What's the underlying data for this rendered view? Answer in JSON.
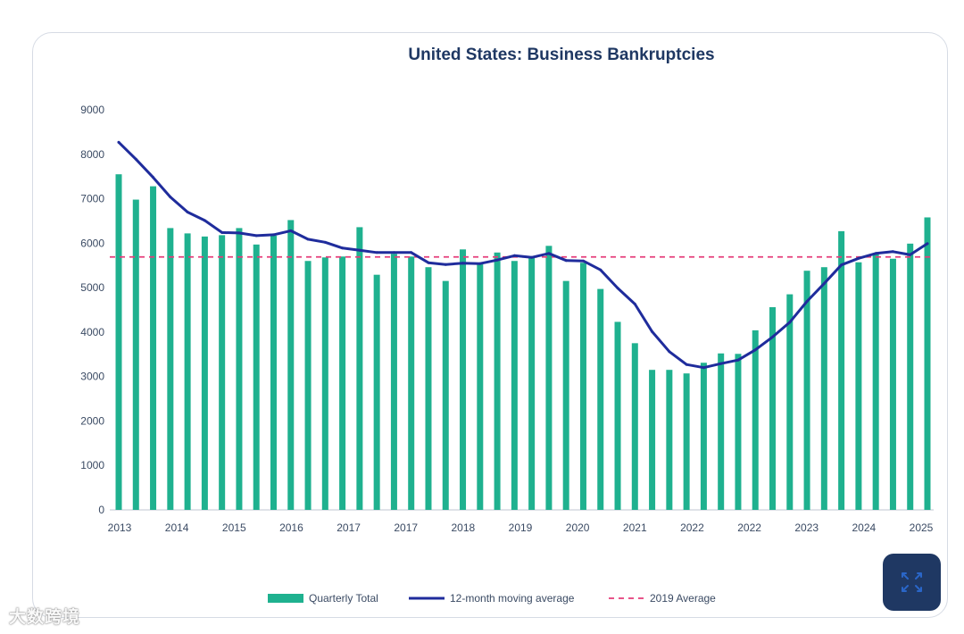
{
  "chart_data": {
    "type": "bar",
    "title": "United States: Business Bankruptcies",
    "ylim": [
      0,
      9000
    ],
    "yticks": [
      0,
      1000,
      2000,
      3000,
      4000,
      5000,
      6000,
      7000,
      8000,
      9000
    ],
    "xtick_labels": [
      "2013",
      "2014",
      "2015",
      "2016",
      "2017",
      "2017",
      "2018",
      "2019",
      "2020",
      "2021",
      "2022",
      "2022",
      "2023",
      "2024",
      "2025"
    ],
    "series": [
      {
        "name": "Quarterly Total",
        "type": "bar",
        "color": "#1fb18f",
        "values": [
          7550,
          6980,
          7280,
          6340,
          6220,
          6150,
          6180,
          6340,
          5970,
          6170,
          6520,
          5600,
          5680,
          5700,
          6360,
          5290,
          5760,
          5700,
          5460,
          5150,
          5860,
          5560,
          5790,
          5600,
          5680,
          5940,
          5150,
          5560,
          4970,
          4230,
          3750,
          3150,
          3150,
          3070,
          3310,
          3520,
          3510,
          4040,
          4560,
          4850,
          5380,
          5460,
          6270,
          5570,
          5760,
          5650,
          5990,
          6580
        ]
      },
      {
        "name": "12-month moving average",
        "type": "line",
        "color": "#1f2c9c",
        "values": [
          8270,
          7890,
          7480,
          7040,
          6700,
          6510,
          6240,
          6230,
          6170,
          6190,
          6280,
          6090,
          6020,
          5890,
          5840,
          5790,
          5790,
          5790,
          5560,
          5520,
          5550,
          5540,
          5620,
          5720,
          5680,
          5770,
          5610,
          5600,
          5400,
          4990,
          4630,
          4010,
          3560,
          3270,
          3200,
          3290,
          3370,
          3600,
          3890,
          4220,
          4690,
          5090,
          5510,
          5660,
          5770,
          5810,
          5740,
          5990
        ]
      },
      {
        "name": "2019 Average",
        "type": "hline",
        "color": "#e53d7a",
        "value": 5690
      }
    ]
  },
  "ui": {
    "expand_icon": "expand-icon",
    "watermark_text": "大数跨境"
  }
}
